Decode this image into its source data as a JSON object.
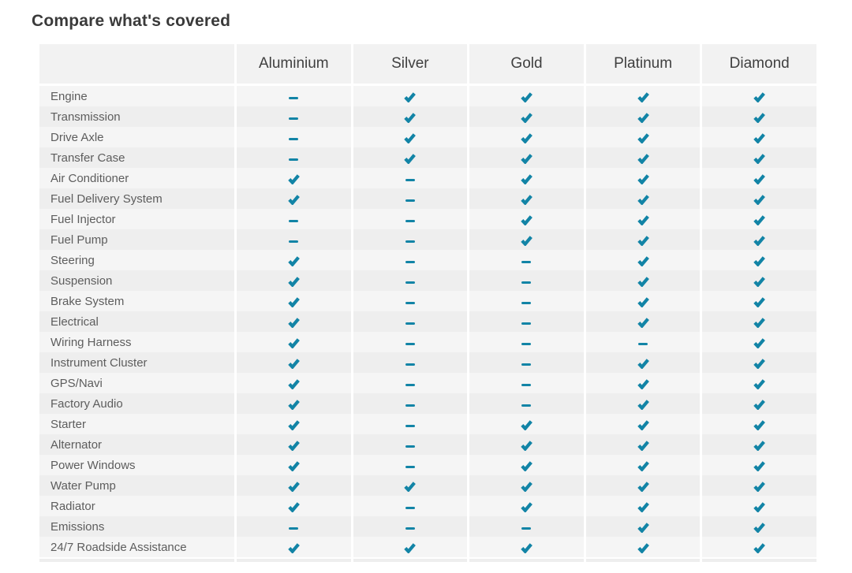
{
  "page_title": "Compare what's covered",
  "colors": {
    "accent": "#1284a6",
    "stripe_light": "#f5f5f5",
    "stripe_dark": "#eeeeee",
    "header_bg": "#f2f2f2",
    "title_text": "#3a3a3a",
    "header_text": "#3f3f3f",
    "row_text": "#5d5d5d"
  },
  "icons": {
    "covered": "check-icon",
    "not_covered": "dash-icon"
  },
  "table": {
    "columns": [
      "Aluminium",
      "Silver",
      "Gold",
      "Platinum",
      "Diamond"
    ],
    "rows": [
      {
        "label": "Engine",
        "covered": [
          false,
          true,
          true,
          true,
          true
        ]
      },
      {
        "label": "Transmission",
        "covered": [
          false,
          true,
          true,
          true,
          true
        ]
      },
      {
        "label": "Drive Axle",
        "covered": [
          false,
          true,
          true,
          true,
          true
        ]
      },
      {
        "label": "Transfer Case",
        "covered": [
          false,
          true,
          true,
          true,
          true
        ]
      },
      {
        "label": "Air Conditioner",
        "covered": [
          true,
          false,
          true,
          true,
          true
        ]
      },
      {
        "label": "Fuel Delivery System",
        "covered": [
          true,
          false,
          true,
          true,
          true
        ]
      },
      {
        "label": "Fuel Injector",
        "covered": [
          false,
          false,
          true,
          true,
          true
        ]
      },
      {
        "label": "Fuel Pump",
        "covered": [
          false,
          false,
          true,
          true,
          true
        ]
      },
      {
        "label": "Steering",
        "covered": [
          true,
          false,
          false,
          true,
          true
        ]
      },
      {
        "label": "Suspension",
        "covered": [
          true,
          false,
          false,
          true,
          true
        ]
      },
      {
        "label": "Brake System",
        "covered": [
          true,
          false,
          false,
          true,
          true
        ]
      },
      {
        "label": "Electrical",
        "covered": [
          true,
          false,
          false,
          true,
          true
        ]
      },
      {
        "label": "Wiring Harness",
        "covered": [
          true,
          false,
          false,
          false,
          true
        ]
      },
      {
        "label": "Instrument Cluster",
        "covered": [
          true,
          false,
          false,
          true,
          true
        ]
      },
      {
        "label": "GPS/Navi",
        "covered": [
          true,
          false,
          false,
          true,
          true
        ]
      },
      {
        "label": "Factory Audio",
        "covered": [
          true,
          false,
          false,
          true,
          true
        ]
      },
      {
        "label": "Starter",
        "covered": [
          true,
          false,
          true,
          true,
          true
        ]
      },
      {
        "label": "Alternator",
        "covered": [
          true,
          false,
          true,
          true,
          true
        ]
      },
      {
        "label": "Power Windows",
        "covered": [
          true,
          false,
          true,
          true,
          true
        ]
      },
      {
        "label": "Water Pump",
        "covered": [
          true,
          true,
          true,
          true,
          true
        ]
      },
      {
        "label": "Radiator",
        "covered": [
          true,
          false,
          true,
          true,
          true
        ]
      },
      {
        "label": "Emissions",
        "covered": [
          false,
          false,
          false,
          true,
          true
        ]
      },
      {
        "label": "24/7 Roadside Assistance",
        "covered": [
          true,
          true,
          true,
          true,
          true
        ]
      }
    ]
  }
}
